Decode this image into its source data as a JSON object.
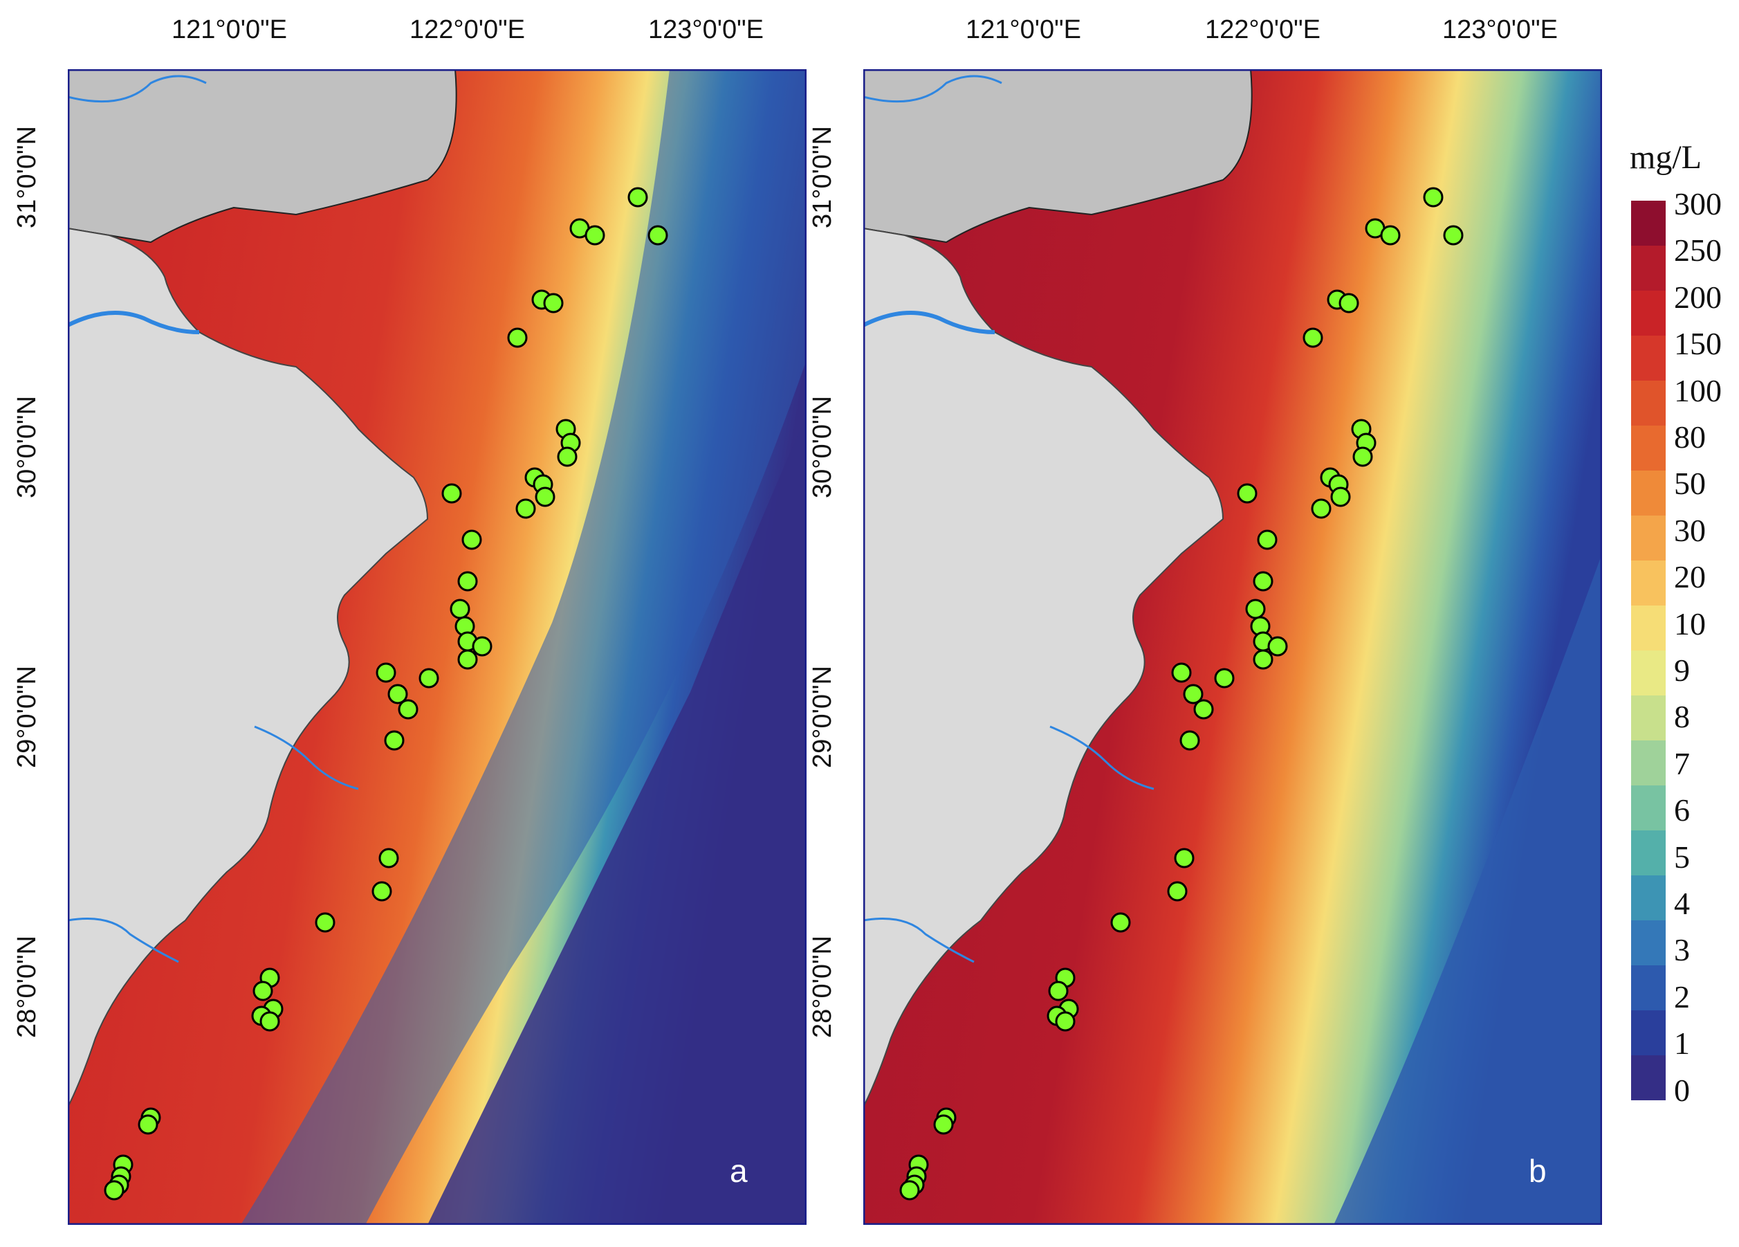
{
  "panels": [
    {
      "id": "a",
      "letter": "a"
    },
    {
      "id": "b",
      "letter": "b"
    }
  ],
  "longitude_labels": [
    "121°0'0\"E",
    "122°0'0\"E",
    "123°0'0\"E"
  ],
  "latitude_labels": [
    "31°0'0\"N",
    "30°0'0\"N",
    "29°0'0\"N",
    "28°0'0\"N"
  ],
  "legend": {
    "unit": "mg/L",
    "ticks": [
      "300",
      "250",
      "200",
      "150",
      "100",
      "80",
      "50",
      "30",
      "20",
      "10",
      "9",
      "8",
      "7",
      "6",
      "5",
      "4",
      "3",
      "2",
      "1",
      "0"
    ],
    "colors": [
      "#8e0e2e",
      "#b41b2b",
      "#c92327",
      "#d6372a",
      "#e0542b",
      "#e86a2f",
      "#ef8a39",
      "#f4a54a",
      "#f8c25e",
      "#f6dd76",
      "#e9e985",
      "#c8e08c",
      "#9fd29a",
      "#78c3a2",
      "#54b0aa",
      "#3d94b4",
      "#3478b8",
      "#2d5aae",
      "#2a3f9c",
      "#342e86"
    ]
  },
  "colors": {
    "land": "#dadada",
    "land_north": "#c0c0c0",
    "river": "#2f86e0",
    "frame": "#1a1f8a",
    "station": "#7fff2a"
  }
}
